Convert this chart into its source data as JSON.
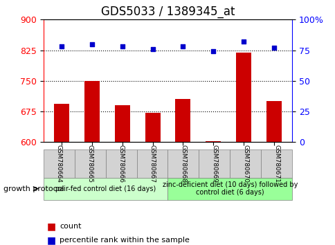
{
  "title": "GDS5033 / 1389345_at",
  "samples": [
    "GSM780664",
    "GSM780665",
    "GSM780666",
    "GSM780667",
    "GSM780668",
    "GSM780669",
    "GSM780670",
    "GSM780671"
  ],
  "counts": [
    693,
    750,
    690,
    672,
    705,
    603,
    820,
    700
  ],
  "percentiles": [
    78,
    80,
    78,
    76,
    78,
    74,
    82,
    77
  ],
  "ylim_left": [
    600,
    900
  ],
  "ylim_right": [
    0,
    100
  ],
  "yticks_left": [
    600,
    675,
    750,
    825,
    900
  ],
  "yticks_right": [
    0,
    25,
    50,
    75,
    100
  ],
  "ytick_labels_right": [
    "0",
    "25",
    "50",
    "75",
    "100%"
  ],
  "hlines": [
    675,
    750,
    825
  ],
  "bar_color": "#cc0000",
  "scatter_color": "#0000cc",
  "group1_label": "pair-fed control diet (16 days)",
  "group2_label": "zinc-deficient diet (10 days) followed by\ncontrol diet (6 days)",
  "group1_color": "#ccffcc",
  "group2_color": "#99ff99",
  "protocol_label": "growth protocol",
  "legend_count_label": "count",
  "legend_pct_label": "percentile rank within the sample",
  "title_fontsize": 12,
  "tick_fontsize": 9
}
